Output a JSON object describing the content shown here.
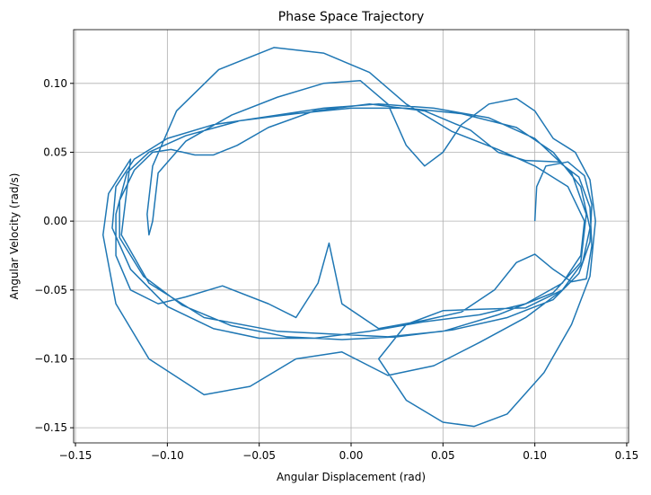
{
  "chart_data": {
    "type": "line",
    "title": "Phase Space Trajectory",
    "x_label": "Angular Displacement (rad)",
    "y_label": "Angular Velocity (rad/s)",
    "xlim": [
      -0.151,
      0.151
    ],
    "ylim": [
      -0.161,
      0.139
    ],
    "grid": true,
    "xticks": [
      {
        "value": -0.15,
        "label": "−0.15"
      },
      {
        "value": -0.1,
        "label": "−0.10"
      },
      {
        "value": -0.05,
        "label": "−0.05"
      },
      {
        "value": 0,
        "label": "0.00"
      },
      {
        "value": 0.05,
        "label": "0.05"
      },
      {
        "value": 0.1,
        "label": "0.10"
      },
      {
        "value": 0.15,
        "label": "0.15"
      }
    ],
    "yticks": [
      {
        "value": -0.15,
        "label": "−0.15"
      },
      {
        "value": -0.1,
        "label": "−0.10"
      },
      {
        "value": -0.05,
        "label": "−0.05"
      },
      {
        "value": 0,
        "label": "0.00"
      },
      {
        "value": 0.05,
        "label": "0.05"
      },
      {
        "value": 0.1,
        "label": "0.10"
      }
    ],
    "x": [
      0.1,
      0.101,
      0.106,
      0.118,
      0.127,
      0.131,
      0.13,
      0.124,
      0.11,
      0.085,
      0.055,
      0.025,
      -0.005,
      -0.035,
      -0.065,
      -0.092,
      -0.113,
      -0.126,
      -0.126,
      -0.118,
      -0.108,
      -0.098,
      -0.085,
      -0.075,
      -0.062,
      -0.045,
      -0.02,
      0.01,
      0.04,
      0.065,
      0.08,
      0.095,
      0.113,
      0.124,
      0.13,
      0.131,
      0.128,
      0.12,
      0.11,
      0.1,
      0.09,
      0.078,
      0.06,
      0.04,
      0.015,
      -0.005,
      -0.012,
      -0.018,
      -0.03,
      -0.045,
      -0.07,
      -0.09,
      -0.105,
      -0.12,
      -0.128,
      -0.128,
      -0.122,
      -0.11,
      -0.09,
      -0.06,
      -0.03,
      0.0,
      0.03,
      0.06,
      0.09,
      0.11,
      0.125,
      0.13,
      0.126,
      0.115,
      0.095,
      0.07,
      0.05,
      0.03,
      0.015,
      0.03,
      0.05,
      0.067,
      0.085,
      0.105,
      0.12,
      0.13,
      0.133,
      0.13,
      0.122,
      0.11,
      0.1,
      0.09,
      0.075,
      0.06,
      0.05,
      0.04,
      0.03,
      0.02,
      0.005,
      -0.015,
      -0.04,
      -0.065,
      -0.09,
      -0.105,
      -0.108,
      -0.11,
      -0.111,
      -0.108,
      -0.095,
      -0.072,
      -0.042,
      -0.015,
      0.01,
      0.03,
      0.055,
      0.08,
      0.1,
      0.118,
      0.127,
      0.125,
      0.115,
      0.095,
      0.07,
      0.04,
      0.01,
      -0.02,
      -0.05,
      -0.075,
      -0.1,
      -0.12,
      -0.13,
      -0.128,
      -0.118,
      -0.1,
      -0.075,
      -0.045,
      -0.015,
      0.015,
      0.045,
      0.075,
      0.1,
      0.12,
      0.128,
      0.125,
      0.11,
      0.08,
      0.05,
      0.02,
      -0.01,
      -0.04,
      -0.08,
      -0.11,
      -0.125,
      -0.12,
      -0.132,
      -0.135,
      -0.128,
      -0.11,
      -0.08,
      -0.055,
      -0.03,
      -0.005,
      0.02,
      0.045,
      0.07,
      0.095,
      0.115
    ],
    "series": [
      {
        "name": "trajectory",
        "color": "#1f77b4",
        "values": [
          0.0,
          0.025,
          0.04,
          0.043,
          0.033,
          0.012,
          -0.015,
          -0.038,
          -0.057,
          -0.07,
          -0.079,
          -0.084,
          -0.086,
          -0.084,
          -0.076,
          -0.061,
          -0.04,
          -0.012,
          0.015,
          0.037,
          0.05,
          0.052,
          0.048,
          0.048,
          0.055,
          0.068,
          0.08,
          0.085,
          0.08,
          0.066,
          0.05,
          0.044,
          0.043,
          0.032,
          0.01,
          -0.018,
          -0.042,
          -0.044,
          -0.035,
          -0.024,
          -0.03,
          -0.05,
          -0.066,
          -0.072,
          -0.078,
          -0.06,
          -0.016,
          -0.045,
          -0.07,
          -0.06,
          -0.047,
          -0.055,
          -0.06,
          -0.05,
          -0.025,
          0.005,
          0.035,
          0.05,
          0.062,
          0.073,
          0.078,
          0.082,
          0.082,
          0.078,
          0.068,
          0.05,
          0.025,
          -0.005,
          -0.03,
          -0.05,
          -0.063,
          -0.064,
          -0.065,
          -0.075,
          -0.1,
          -0.13,
          -0.146,
          -0.149,
          -0.14,
          -0.11,
          -0.075,
          -0.04,
          0.0,
          0.03,
          0.05,
          0.06,
          0.08,
          0.089,
          0.085,
          0.07,
          0.05,
          0.04,
          0.055,
          0.085,
          0.102,
          0.1,
          0.09,
          0.077,
          0.058,
          0.035,
          0.0,
          -0.01,
          0.005,
          0.04,
          0.08,
          0.11,
          0.126,
          0.122,
          0.108,
          0.085,
          0.065,
          0.052,
          0.04,
          0.025,
          0.0,
          -0.025,
          -0.045,
          -0.06,
          -0.068,
          -0.073,
          -0.08,
          -0.085,
          -0.085,
          -0.078,
          -0.062,
          -0.035,
          -0.005,
          0.025,
          0.045,
          0.06,
          0.07,
          0.076,
          0.082,
          0.085,
          0.082,
          0.075,
          0.06,
          0.035,
          0.005,
          -0.03,
          -0.052,
          -0.068,
          -0.08,
          -0.084,
          -0.082,
          -0.08,
          -0.07,
          -0.045,
          -0.01,
          0.045,
          0.02,
          -0.01,
          -0.06,
          -0.1,
          -0.126,
          -0.12,
          -0.1,
          -0.095,
          -0.112,
          -0.105,
          -0.088,
          -0.07,
          -0.05
        ]
      }
    ]
  }
}
